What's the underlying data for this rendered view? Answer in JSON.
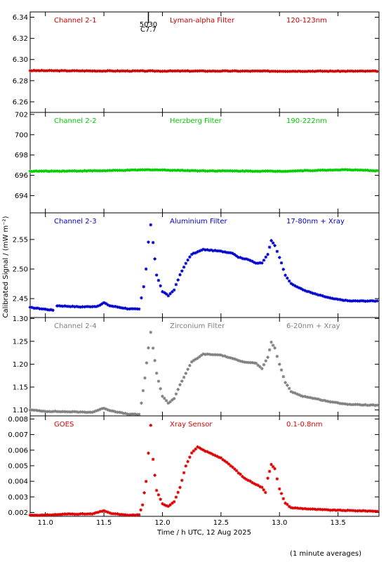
{
  "ylabel": "Calibrated Signal / (mW m⁻²)",
  "xlabel": "Time / h UTC, 12 Aug 2025",
  "footnote": "(1 minute averages)",
  "flare_marker": {
    "label": "5030",
    "class_label": "C7.7",
    "x": 11.88
  },
  "chart_data": [
    {
      "type": "scatter",
      "panel": "Channel 2-1",
      "labels": [
        "Channel 2-1",
        "Lyman-alpha Filter",
        "120-123nm"
      ],
      "color": "#cc0000",
      "xlim": [
        10.87,
        13.85
      ],
      "ylim": [
        6.25,
        6.345
      ],
      "yticks": [
        "6.26",
        "6.28",
        "6.30",
        "6.32",
        "6.34"
      ],
      "points": [
        [
          10.87,
          6.2895
        ],
        [
          11.5,
          6.2892
        ],
        [
          12.0,
          6.2891
        ],
        [
          12.5,
          6.2891
        ],
        [
          13.0,
          6.289
        ],
        [
          13.5,
          6.289
        ],
        [
          13.85,
          6.289
        ]
      ]
    },
    {
      "type": "scatter",
      "panel": "Channel 2-2",
      "labels": [
        "Channel 2-2",
        "Herzberg Filter",
        "190-222nm"
      ],
      "color": "#00cc00",
      "xlim": [
        10.87,
        13.85
      ],
      "ylim": [
        692.3,
        702.2
      ],
      "yticks": [
        "694",
        "696",
        "698",
        "700",
        "702"
      ],
      "points": [
        [
          10.87,
          696.4
        ],
        [
          11.5,
          696.45
        ],
        [
          11.9,
          696.55
        ],
        [
          12.3,
          696.45
        ],
        [
          13.0,
          696.4
        ],
        [
          13.55,
          696.55
        ],
        [
          13.85,
          696.45
        ]
      ]
    },
    {
      "type": "scatter",
      "panel": "Channel 2-3",
      "labels": [
        "Channel 2-3",
        "Aluminium Filter",
        "17-80nm + Xray"
      ],
      "color": "#0000cc",
      "xlim": [
        10.87,
        13.85
      ],
      "ylim": [
        2.418,
        2.595
      ],
      "yticks": [
        "2.45",
        "2.50",
        "2.55"
      ],
      "gap": [
        11.08,
        11.1
      ],
      "points": [
        [
          10.87,
          2.435
        ],
        [
          11.0,
          2.432
        ],
        [
          11.08,
          2.43
        ],
        [
          11.1,
          2.438
        ],
        [
          11.3,
          2.436
        ],
        [
          11.45,
          2.437
        ],
        [
          11.5,
          2.443
        ],
        [
          11.55,
          2.438
        ],
        [
          11.7,
          2.433
        ],
        [
          11.8,
          2.432
        ],
        [
          11.84,
          2.47
        ],
        [
          11.86,
          2.5
        ],
        [
          11.88,
          2.545
        ],
        [
          11.9,
          2.575
        ],
        [
          11.92,
          2.545
        ],
        [
          11.95,
          2.49
        ],
        [
          12.0,
          2.462
        ],
        [
          12.05,
          2.455
        ],
        [
          12.1,
          2.465
        ],
        [
          12.15,
          2.49
        ],
        [
          12.2,
          2.51
        ],
        [
          12.25,
          2.525
        ],
        [
          12.35,
          2.533
        ],
        [
          12.5,
          2.53
        ],
        [
          12.6,
          2.527
        ],
        [
          12.65,
          2.52
        ],
        [
          12.75,
          2.515
        ],
        [
          12.8,
          2.51
        ],
        [
          12.85,
          2.51
        ],
        [
          12.9,
          2.525
        ],
        [
          12.93,
          2.548
        ],
        [
          12.96,
          2.54
        ],
        [
          13.0,
          2.52
        ],
        [
          13.05,
          2.49
        ],
        [
          13.1,
          2.475
        ],
        [
          13.2,
          2.465
        ],
        [
          13.3,
          2.458
        ],
        [
          13.45,
          2.45
        ],
        [
          13.6,
          2.446
        ],
        [
          13.85,
          2.446
        ]
      ]
    },
    {
      "type": "scatter",
      "panel": "Channel 2-4",
      "labels": [
        "Channel 2-4",
        "Zirconium Filter",
        "6-20nm + Xray"
      ],
      "color": "#808080",
      "xlim": [
        10.87,
        13.85
      ],
      "ylim": [
        1.087,
        1.302
      ],
      "yticks": [
        "1.10",
        "1.15",
        "1.20",
        "1.25",
        "1.30"
      ],
      "points": [
        [
          10.87,
          1.1
        ],
        [
          11.0,
          1.097
        ],
        [
          11.2,
          1.096
        ],
        [
          11.4,
          1.095
        ],
        [
          11.5,
          1.104
        ],
        [
          11.55,
          1.099
        ],
        [
          11.7,
          1.091
        ],
        [
          11.8,
          1.09
        ],
        [
          11.82,
          1.115
        ],
        [
          11.85,
          1.17
        ],
        [
          11.88,
          1.235
        ],
        [
          11.9,
          1.27
        ],
        [
          11.92,
          1.235
        ],
        [
          11.95,
          1.18
        ],
        [
          12.0,
          1.13
        ],
        [
          12.05,
          1.115
        ],
        [
          12.1,
          1.125
        ],
        [
          12.15,
          1.155
        ],
        [
          12.2,
          1.18
        ],
        [
          12.25,
          1.205
        ],
        [
          12.35,
          1.222
        ],
        [
          12.5,
          1.22
        ],
        [
          12.6,
          1.212
        ],
        [
          12.7,
          1.205
        ],
        [
          12.8,
          1.202
        ],
        [
          12.85,
          1.19
        ],
        [
          12.9,
          1.215
        ],
        [
          12.93,
          1.248
        ],
        [
          12.96,
          1.235
        ],
        [
          13.0,
          1.2
        ],
        [
          13.05,
          1.16
        ],
        [
          13.1,
          1.14
        ],
        [
          13.2,
          1.13
        ],
        [
          13.3,
          1.125
        ],
        [
          13.45,
          1.117
        ],
        [
          13.6,
          1.112
        ],
        [
          13.85,
          1.11
        ]
      ]
    },
    {
      "type": "scatter",
      "panel": "GOES",
      "labels": [
        "GOES",
        "Xray Sensor",
        "0.1-0.8nm"
      ],
      "color": "#dd0000",
      "xlim": [
        10.87,
        13.85
      ],
      "ylim": [
        0.00175,
        0.0082
      ],
      "yticks": [
        "0.002",
        "0.003",
        "0.004",
        "0.005",
        "0.006",
        "0.007",
        "0.008"
      ],
      "points": [
        [
          10.87,
          0.00183
        ],
        [
          11.0,
          0.00183
        ],
        [
          11.2,
          0.0019
        ],
        [
          11.4,
          0.0019
        ],
        [
          11.5,
          0.00212
        ],
        [
          11.55,
          0.00195
        ],
        [
          11.7,
          0.00182
        ],
        [
          11.8,
          0.00184
        ],
        [
          11.83,
          0.0025
        ],
        [
          11.86,
          0.004
        ],
        [
          11.88,
          0.0058
        ],
        [
          11.9,
          0.0076
        ],
        [
          11.92,
          0.0054
        ],
        [
          11.95,
          0.0034
        ],
        [
          12.0,
          0.00255
        ],
        [
          12.05,
          0.0024
        ],
        [
          12.1,
          0.0027
        ],
        [
          12.15,
          0.0036
        ],
        [
          12.2,
          0.005
        ],
        [
          12.25,
          0.0058
        ],
        [
          12.3,
          0.0062
        ],
        [
          12.35,
          0.006
        ],
        [
          12.5,
          0.0055
        ],
        [
          12.6,
          0.0049
        ],
        [
          12.7,
          0.0042
        ],
        [
          12.8,
          0.0038
        ],
        [
          12.85,
          0.0036
        ],
        [
          12.88,
          0.0033
        ],
        [
          12.9,
          0.0042
        ],
        [
          12.93,
          0.0051
        ],
        [
          12.96,
          0.0048
        ],
        [
          13.0,
          0.0035
        ],
        [
          13.05,
          0.0026
        ],
        [
          13.1,
          0.0023
        ],
        [
          13.2,
          0.00225
        ],
        [
          13.3,
          0.0022
        ],
        [
          13.45,
          0.00215
        ],
        [
          13.6,
          0.00212
        ],
        [
          13.85,
          0.00208
        ]
      ]
    }
  ],
  "xticks": [
    "11.0",
    "11.5",
    "12.0",
    "12.5",
    "13.0",
    "13.5"
  ],
  "xtick_values": [
    11.0,
    11.5,
    12.0,
    12.5,
    13.0,
    13.5
  ]
}
